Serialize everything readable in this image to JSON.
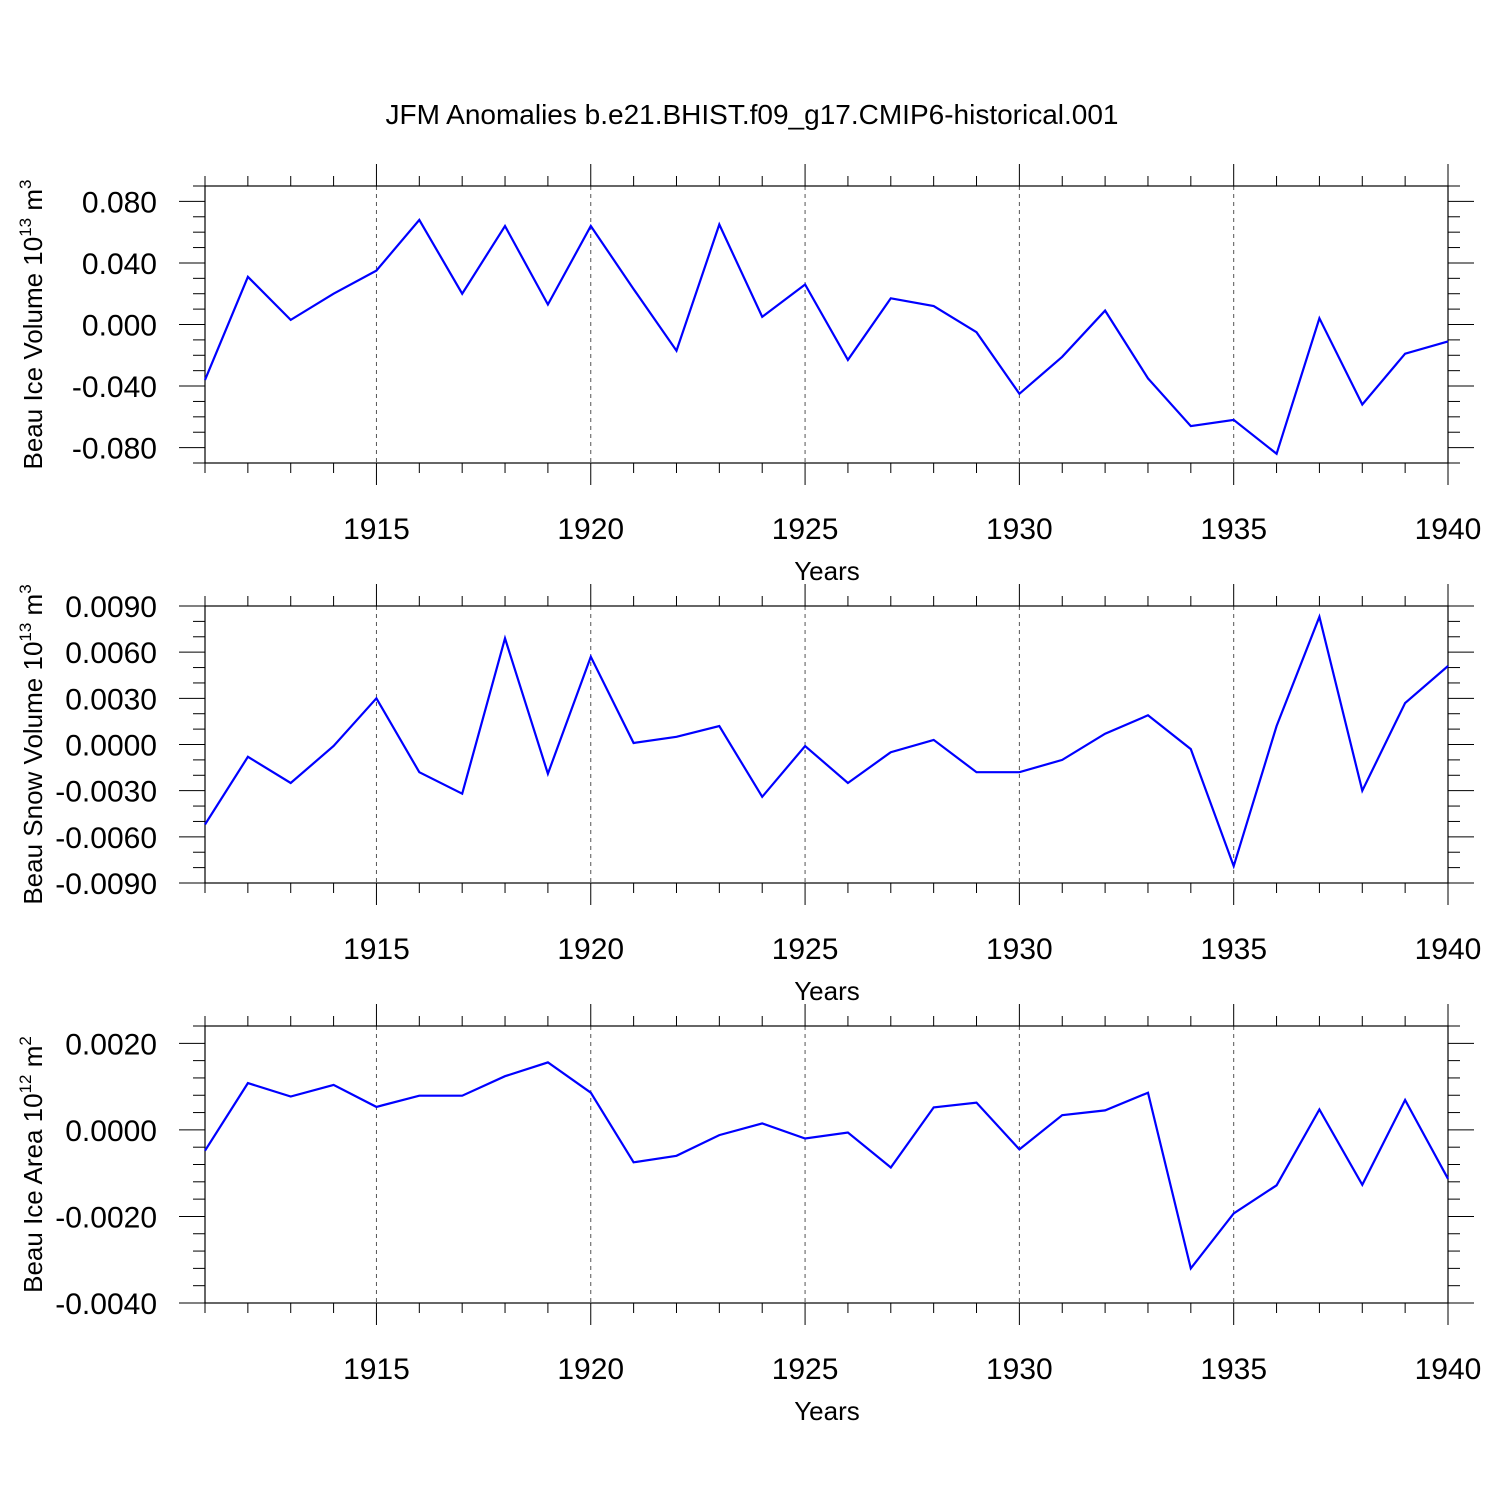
{
  "title": "JFM Anomalies b.e21.BHIST.f09_g17.CMIP6-historical.001",
  "colors": {
    "series": "#0000ff",
    "axis": "#000000",
    "grid": "#555555"
  },
  "chart_data": [
    {
      "type": "line",
      "id": "ice-volume",
      "ylabel_main": "Beau Ice Volume 10",
      "ylabel_exp": "13",
      "ylabel_unit": " m",
      "ylabel_unit_exp": "3",
      "xlabel": "Years",
      "xlim": [
        1911,
        1940
      ],
      "ylim": [
        -0.09,
        0.09
      ],
      "xticks": [
        1915,
        1920,
        1925,
        1930,
        1935,
        1940
      ],
      "xtick_labels": [
        "1915",
        "1920",
        "1925",
        "1930",
        "1935",
        "1940"
      ],
      "yticks": [
        0.08,
        0.04,
        0.0,
        -0.04,
        -0.08
      ],
      "ytick_labels": [
        "0.080",
        "0.040",
        "0.000",
        "-0.040",
        "-0.080"
      ],
      "yminor_step": 0.01,
      "grid_x": true,
      "series": [
        {
          "name": "Beau Ice Volume",
          "x": [
            1911,
            1912,
            1913,
            1914,
            1915,
            1916,
            1917,
            1918,
            1919,
            1920,
            1921,
            1922,
            1923,
            1924,
            1925,
            1926,
            1927,
            1928,
            1929,
            1930,
            1931,
            1932,
            1933,
            1934,
            1935,
            1936,
            1937,
            1938,
            1939,
            1940
          ],
          "values": [
            -0.036,
            0.031,
            0.003,
            0.02,
            0.035,
            0.068,
            0.02,
            0.064,
            0.013,
            0.064,
            0.023,
            -0.017,
            0.065,
            0.005,
            0.026,
            -0.023,
            0.017,
            0.012,
            -0.005,
            -0.045,
            -0.021,
            0.009,
            -0.035,
            -0.066,
            -0.062,
            -0.084,
            0.004,
            -0.052,
            -0.019,
            -0.011
          ]
        }
      ]
    },
    {
      "type": "line",
      "id": "snow-volume",
      "ylabel_main": "Beau Snow Volume 10",
      "ylabel_exp": "13",
      "ylabel_unit": " m",
      "ylabel_unit_exp": "3",
      "xlabel": "Years",
      "xlim": [
        1911,
        1940
      ],
      "ylim": [
        -0.009,
        0.009
      ],
      "xticks": [
        1915,
        1920,
        1925,
        1930,
        1935,
        1940
      ],
      "xtick_labels": [
        "1915",
        "1920",
        "1925",
        "1930",
        "1935",
        "1940"
      ],
      "yticks": [
        0.009,
        0.006,
        0.003,
        0.0,
        -0.003,
        -0.006,
        -0.009
      ],
      "ytick_labels": [
        "0.0090",
        "0.0060",
        "0.0030",
        "0.0000",
        "-0.0030",
        "-0.0060",
        "-0.0090"
      ],
      "yminor_step": 0.001,
      "grid_x": true,
      "series": [
        {
          "name": "Beau Snow Volume",
          "x": [
            1911,
            1912,
            1913,
            1914,
            1915,
            1916,
            1917,
            1918,
            1919,
            1920,
            1921,
            1922,
            1923,
            1924,
            1925,
            1926,
            1927,
            1928,
            1929,
            1930,
            1931,
            1932,
            1933,
            1934,
            1935,
            1936,
            1937,
            1938,
            1939,
            1940
          ],
          "values": [
            -0.0052,
            -0.0008,
            -0.0025,
            -0.0001,
            0.003,
            -0.0018,
            -0.0032,
            0.0069,
            -0.0019,
            0.0057,
            0.0001,
            0.0005,
            0.0012,
            -0.0034,
            -0.0001,
            -0.0025,
            -0.0005,
            0.0003,
            -0.0018,
            -0.0018,
            -0.001,
            0.0007,
            0.0019,
            -0.0003,
            -0.0079,
            0.0012,
            0.0083,
            -0.003,
            0.0027,
            0.0051
          ]
        }
      ]
    },
    {
      "type": "line",
      "id": "ice-area",
      "ylabel_main": "Beau Ice Area 10",
      "ylabel_exp": "12",
      "ylabel_unit": " m",
      "ylabel_unit_exp": "2",
      "xlabel": "Years",
      "xlim": [
        1911,
        1940
      ],
      "ylim": [
        -0.004,
        0.0024
      ],
      "xticks": [
        1915,
        1920,
        1925,
        1930,
        1935,
        1940
      ],
      "xtick_labels": [
        "1915",
        "1920",
        "1925",
        "1930",
        "1935",
        "1940"
      ],
      "yticks": [
        0.002,
        0.0,
        -0.002,
        -0.004
      ],
      "ytick_labels": [
        "0.0020",
        "0.0000",
        "-0.0020",
        "-0.0040"
      ],
      "yminor_step": 0.0004,
      "grid_x": true,
      "series": [
        {
          "name": "Beau Ice Area",
          "x": [
            1911,
            1912,
            1913,
            1914,
            1915,
            1916,
            1917,
            1918,
            1919,
            1920,
            1921,
            1922,
            1923,
            1924,
            1925,
            1926,
            1927,
            1928,
            1929,
            1930,
            1931,
            1932,
            1933,
            1934,
            1935,
            1936,
            1937,
            1938,
            1939,
            1940
          ],
          "values": [
            -0.00048,
            0.00108,
            0.00077,
            0.00104,
            0.00053,
            0.00079,
            0.00079,
            0.00124,
            0.00156,
            0.00086,
            -0.00075,
            -0.0006,
            -0.00012,
            0.00015,
            -0.0002,
            -6e-05,
            -0.00087,
            0.00052,
            0.00063,
            -0.00045,
            0.00034,
            0.00045,
            0.00086,
            -0.0032,
            -0.00193,
            -0.00128,
            0.00047,
            -0.00127,
            0.00069,
            -0.00113
          ]
        }
      ]
    }
  ]
}
